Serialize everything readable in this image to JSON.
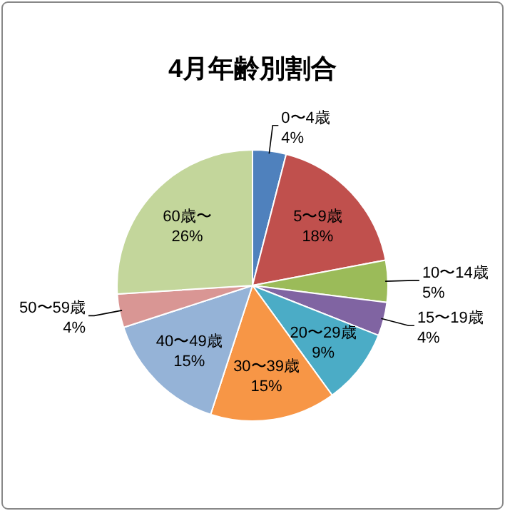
{
  "chart_data": {
    "type": "pie",
    "title": "4月年齢別割合",
    "categories": [
      "0〜4歳",
      "5〜9歳",
      "10〜14歳",
      "15〜19歳",
      "20〜29歳",
      "30〜39歳",
      "40〜49歳",
      "50〜59歳",
      "60歳〜"
    ],
    "values": [
      4,
      18,
      5,
      4,
      9,
      15,
      15,
      4,
      26
    ],
    "value_labels": [
      "4%",
      "18%",
      "5%",
      "4%",
      "9%",
      "15%",
      "15%",
      "4%",
      "26%"
    ],
    "colors": [
      "#4f81bd",
      "#c0504d",
      "#9bbb59",
      "#8064a2",
      "#4bacc6",
      "#f79646",
      "#95b3d7",
      "#d99694",
      "#c3d69b"
    ],
    "legend": false
  }
}
